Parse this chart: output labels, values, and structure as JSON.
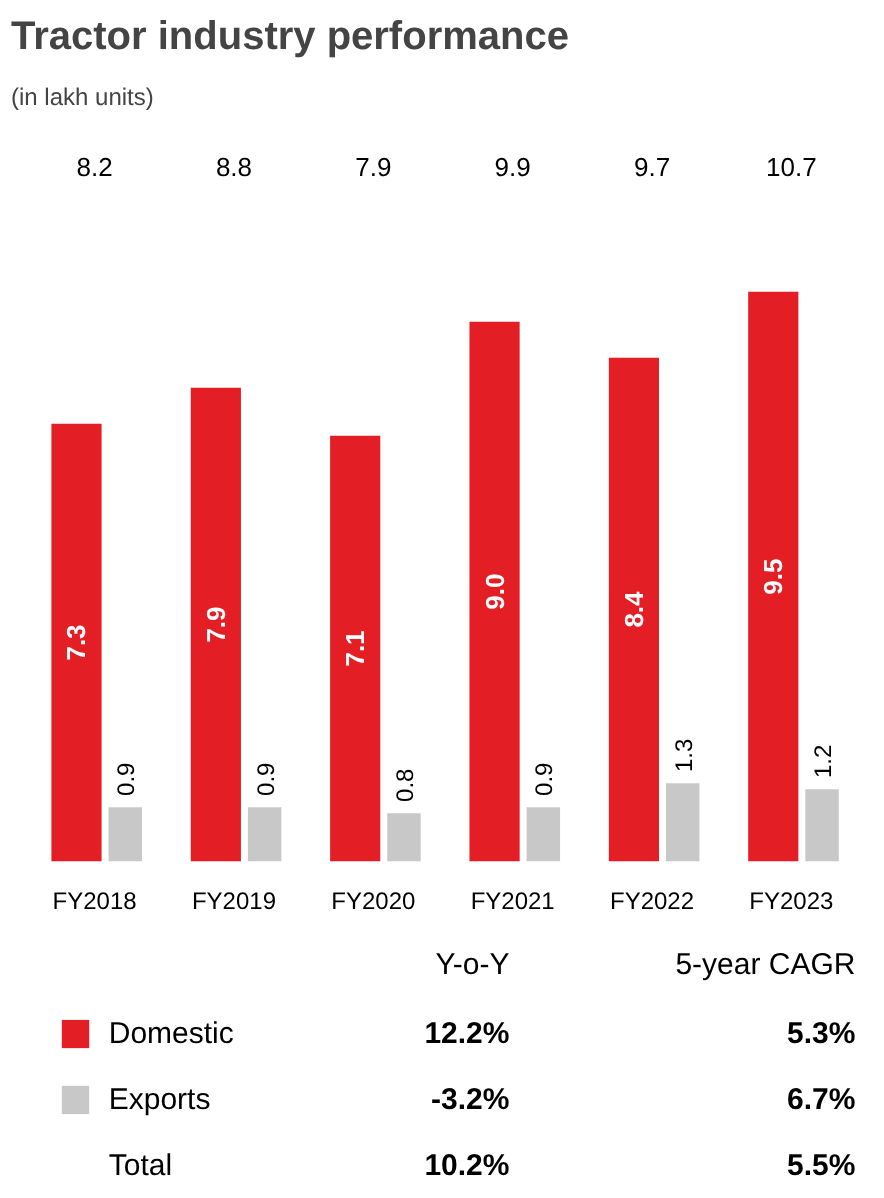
{
  "chart_data": {
    "type": "bar",
    "title": "Tractor industry performance",
    "subtitle": "(in lakh units)",
    "categories": [
      "FY2018",
      "FY2019",
      "FY2020",
      "FY2021",
      "FY2022",
      "FY2023"
    ],
    "series": [
      {
        "name": "Domestic",
        "color": "#e31e24",
        "values": [
          7.3,
          7.9,
          7.1,
          9.0,
          8.4,
          9.5
        ],
        "value_labels": [
          "7.3",
          "7.9",
          "7.1",
          "9.0",
          "8.4",
          "9.5"
        ]
      },
      {
        "name": "Exports",
        "color": "#c8c8c9",
        "values": [
          0.9,
          0.9,
          0.8,
          0.9,
          1.3,
          1.2
        ],
        "value_labels": [
          "0.9",
          "0.9",
          "0.8",
          "0.9",
          "1.3",
          "1.2"
        ]
      }
    ],
    "data_labels": true,
    "legend": "bottom",
    "grid": false,
    "annotations": [
      "8.2",
      "8.8",
      "7.9",
      "9.9",
      "9.7",
      "10.7",
      "Y-o-Y",
      "5-year CAGR",
      "12.2%",
      "5.3%",
      "-3.2%",
      "6.7%",
      "Total",
      "10.2%",
      "5.5%"
    ]
  }
}
